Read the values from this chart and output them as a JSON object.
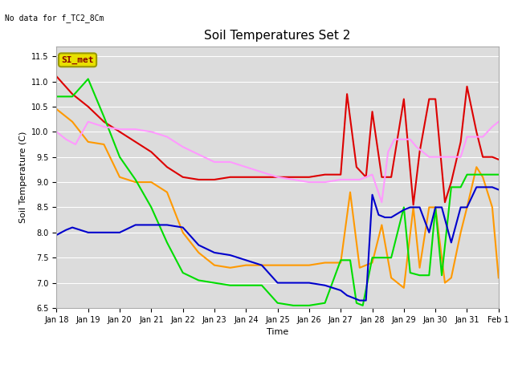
{
  "title": "Soil Temperatures Set 2",
  "xlabel": "Time",
  "ylabel": "Soil Temperature (C)",
  "note": "No data for f_TC2_8Cm",
  "ylim": [
    6.5,
    11.7
  ],
  "bg_color": "#dcdcdc",
  "legend_label": "SI_met",
  "legend_box_color": "#e8e000",
  "legend_box_text_color": "#880000",
  "series": {
    "TC2_2Cm": {
      "color": "#dd0000",
      "x": [
        18,
        18.5,
        19,
        19.5,
        20,
        20.5,
        21,
        21.5,
        22,
        22.5,
        23,
        23.5,
        24,
        24.5,
        25,
        25.5,
        26,
        26.5,
        27,
        27.2,
        27.5,
        27.8,
        28,
        28.3,
        28.6,
        29,
        29.3,
        29.5,
        29.8,
        30,
        30.3,
        30.5,
        30.8,
        31,
        31.3,
        31.5,
        31.8,
        32
      ],
      "y": [
        11.1,
        10.75,
        10.5,
        10.2,
        10.0,
        9.8,
        9.6,
        9.3,
        9.1,
        9.05,
        9.05,
        9.1,
        9.1,
        9.1,
        9.1,
        9.1,
        9.1,
        9.15,
        9.15,
        10.75,
        9.3,
        9.1,
        10.4,
        9.1,
        9.1,
        10.65,
        8.55,
        9.6,
        10.65,
        10.65,
        8.6,
        9.0,
        9.8,
        10.9,
        10.0,
        9.5,
        9.5,
        9.45
      ]
    },
    "TC2_4Cm": {
      "color": "#ff9900",
      "x": [
        18,
        18.5,
        19,
        19.5,
        20,
        20.5,
        21,
        21.5,
        22,
        22.5,
        23,
        23.5,
        24,
        24.5,
        25,
        25.5,
        26,
        26.5,
        27,
        27.3,
        27.6,
        28,
        28.3,
        28.6,
        29,
        29.3,
        29.5,
        29.8,
        30,
        30.3,
        30.5,
        30.8,
        31,
        31.3,
        31.5,
        31.8,
        32
      ],
      "y": [
        10.45,
        10.2,
        9.8,
        9.75,
        9.1,
        9.0,
        9.0,
        8.8,
        8.0,
        7.6,
        7.35,
        7.3,
        7.35,
        7.35,
        7.35,
        7.35,
        7.35,
        7.4,
        7.4,
        8.8,
        7.3,
        7.4,
        8.15,
        7.1,
        6.9,
        8.5,
        7.3,
        8.5,
        8.5,
        7.0,
        7.1,
        8.0,
        8.5,
        9.3,
        9.1,
        8.5,
        7.1
      ]
    },
    "TC2_16Cm": {
      "color": "#00dd00",
      "x": [
        18,
        18.5,
        19,
        19.5,
        20,
        20.5,
        21,
        21.5,
        22,
        22.5,
        23,
        23.5,
        24,
        24.5,
        25,
        25.5,
        26,
        26.5,
        27,
        27.3,
        27.5,
        27.7,
        28,
        28.3,
        28.6,
        29,
        29.2,
        29.5,
        29.8,
        30,
        30.2,
        30.5,
        30.8,
        31,
        31.3,
        31.5,
        31.8,
        32
      ],
      "y": [
        10.7,
        10.7,
        11.05,
        10.3,
        9.5,
        9.05,
        8.5,
        7.8,
        7.2,
        7.05,
        7.0,
        6.95,
        6.95,
        6.95,
        6.6,
        6.55,
        6.55,
        6.6,
        7.45,
        7.45,
        6.6,
        6.55,
        7.5,
        7.5,
        7.5,
        8.5,
        7.2,
        7.15,
        7.15,
        8.5,
        7.15,
        8.9,
        8.9,
        9.15,
        9.15,
        9.15,
        9.15,
        9.15
      ]
    },
    "TC2_32Cm": {
      "color": "#0000cc",
      "x": [
        18,
        18.3,
        18.5,
        19,
        19.5,
        20,
        20.5,
        21,
        21.5,
        22,
        22.5,
        23,
        23.5,
        24,
        24.5,
        25,
        25.5,
        26,
        26.5,
        27,
        27.2,
        27.4,
        27.6,
        27.8,
        28,
        28.2,
        28.4,
        28.6,
        29,
        29.2,
        29.5,
        29.8,
        30,
        30.2,
        30.5,
        30.8,
        31,
        31.3,
        31.5,
        31.8,
        32
      ],
      "y": [
        7.95,
        8.05,
        8.1,
        8.0,
        8.0,
        8.0,
        8.15,
        8.15,
        8.15,
        8.1,
        7.75,
        7.6,
        7.55,
        7.45,
        7.35,
        7.0,
        7.0,
        7.0,
        6.95,
        6.85,
        6.75,
        6.7,
        6.65,
        6.65,
        8.75,
        8.35,
        8.3,
        8.3,
        8.45,
        8.5,
        8.5,
        8.0,
        8.5,
        8.5,
        7.8,
        8.5,
        8.5,
        8.9,
        8.9,
        8.9,
        8.85
      ]
    },
    "TC2_50Cm": {
      "color": "#ff99ff",
      "x": [
        18,
        18.3,
        18.6,
        19,
        19.5,
        20,
        20.5,
        21,
        21.5,
        22,
        22.5,
        23,
        23.5,
        24,
        24.5,
        25,
        25.5,
        26,
        26.5,
        27,
        27.3,
        27.6,
        27.8,
        28,
        28.3,
        28.5,
        28.7,
        28.9,
        29,
        29.2,
        29.4,
        29.6,
        29.8,
        30,
        30.2,
        30.5,
        30.8,
        31,
        31.2,
        31.5,
        31.8,
        32
      ],
      "y": [
        10.0,
        9.85,
        9.75,
        10.2,
        10.1,
        10.05,
        10.05,
        10.0,
        9.9,
        9.7,
        9.55,
        9.4,
        9.4,
        9.3,
        9.2,
        9.1,
        9.05,
        9.0,
        9.0,
        9.05,
        9.05,
        9.05,
        9.1,
        9.15,
        8.6,
        9.6,
        9.85,
        9.85,
        9.85,
        9.85,
        9.7,
        9.6,
        9.5,
        9.5,
        9.5,
        9.5,
        9.5,
        9.9,
        9.9,
        9.9,
        10.1,
        10.2
      ]
    }
  },
  "xtick_labels": [
    "Jan 18",
    "Jan 19",
    "Jan 20",
    "Jan 21",
    "Jan 22",
    "Jan 23",
    "Jan 24",
    "Jan 25",
    "Jan 26",
    "Jan 27",
    "Jan 28",
    "Jan 29",
    "Jan 30",
    "Jan 31",
    "Feb 1"
  ],
  "xtick_positions": [
    18,
    19,
    20,
    21,
    22,
    23,
    24,
    25,
    26,
    27,
    28,
    29,
    30,
    31,
    32
  ],
  "ytick_positions": [
    6.5,
    7.0,
    7.5,
    8.0,
    8.5,
    9.0,
    9.5,
    10.0,
    10.5,
    11.0,
    11.5
  ],
  "title_fontsize": 11,
  "tick_fontsize": 7,
  "label_fontsize": 8,
  "legend_fontsize": 8
}
